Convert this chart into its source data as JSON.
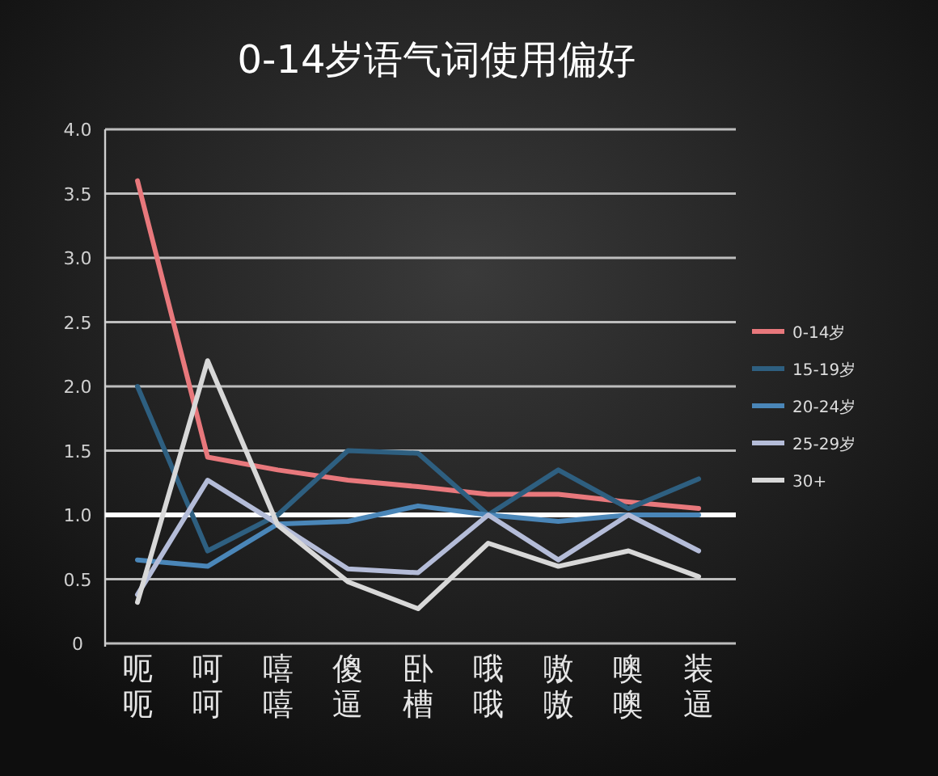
{
  "chart_data": {
    "type": "line",
    "title": "0-14岁语气词使用偏好",
    "categories": [
      "呃呃",
      "呵呵",
      "嘻嘻",
      "傻逼",
      "卧槽",
      "哦哦",
      "嗷嗷",
      "噢噢",
      "装逼"
    ],
    "series": [
      {
        "name": "0-14岁",
        "color": "#e8787c",
        "values": [
          3.6,
          1.45,
          1.35,
          1.27,
          1.22,
          1.16,
          1.16,
          1.1,
          1.05
        ]
      },
      {
        "name": "15-19岁",
        "color": "#2e5f80",
        "values": [
          2.0,
          0.72,
          1.0,
          1.5,
          1.48,
          1.0,
          1.35,
          1.05,
          1.28
        ]
      },
      {
        "name": "20-24岁",
        "color": "#4a86b8",
        "values": [
          0.65,
          0.6,
          0.93,
          0.95,
          1.07,
          1.0,
          0.95,
          1.0,
          1.0
        ]
      },
      {
        "name": "25-29岁",
        "color": "#b4bcd8",
        "values": [
          0.38,
          1.27,
          0.93,
          0.58,
          0.55,
          1.0,
          0.65,
          1.0,
          0.72
        ]
      },
      {
        "name": "30+",
        "color": "#d8d8d8",
        "values": [
          0.32,
          2.2,
          0.92,
          0.48,
          0.27,
          0.78,
          0.6,
          0.72,
          0.52
        ]
      }
    ],
    "ylim": [
      0,
      4
    ],
    "yticks": [
      0,
      {
        "value": 0.5,
        "label": "0.5"
      },
      {
        "value": 1,
        "label": "1.0"
      },
      {
        "value": 1.5,
        "label": "1.5"
      },
      {
        "value": 2,
        "label": "2.0"
      },
      {
        "value": 2.5,
        "label": "2.5"
      },
      {
        "value": 3,
        "label": "3.0"
      },
      {
        "value": 3.5,
        "label": "3.5"
      },
      {
        "value": 4,
        "label": "4.0"
      }
    ],
    "ref_lines": [
      {
        "axis": "y",
        "value": 1,
        "color": "#ffffff"
      }
    ],
    "grid": "y",
    "legend": "right",
    "marker": "none",
    "line_style": "solid"
  }
}
